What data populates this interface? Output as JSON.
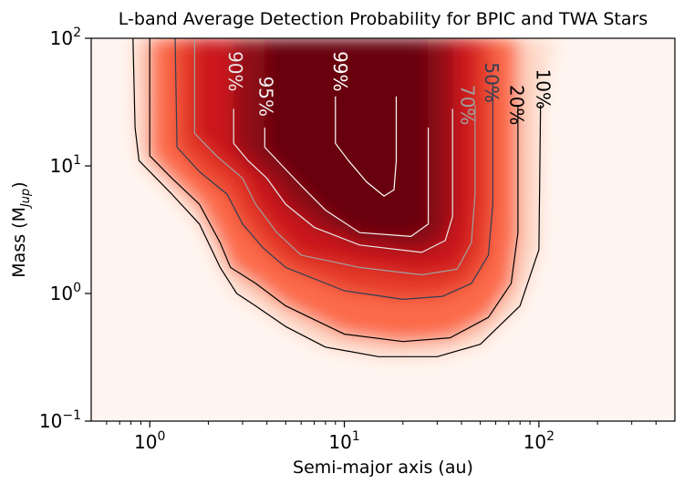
{
  "chart_data": {
    "type": "heatmap",
    "title": "L-band Average Detection Probability for BPIC and TWA Stars",
    "xlabel": "Semi-major axis (au)",
    "ylabel": "Mass (M",
    "ylabel_sub": "Jup",
    "ylabel_close": ")",
    "x_scale": "log",
    "y_scale": "log",
    "xlim": [
      0.5,
      500
    ],
    "ylim": [
      0.1,
      100
    ],
    "x_ticks": [
      {
        "value": 1,
        "base": "10",
        "exp": "0"
      },
      {
        "value": 10,
        "base": "10",
        "exp": "1"
      },
      {
        "value": 100,
        "base": "10",
        "exp": "2"
      }
    ],
    "y_ticks": [
      {
        "value": 0.1,
        "base": "10",
        "exp": "−1"
      },
      {
        "value": 1,
        "base": "10",
        "exp": "0"
      },
      {
        "value": 10,
        "base": "10",
        "exp": "1"
      },
      {
        "value": 100,
        "base": "10",
        "exp": "2"
      }
    ],
    "colormap": [
      "#fff5f0",
      "#fcbba1",
      "#fb6a4a",
      "#cb181d",
      "#67000d"
    ],
    "contours": [
      {
        "label": "10%",
        "level": 0.1,
        "color": "#000000",
        "label_at": [
          105,
          40
        ],
        "points": [
          [
            0.82,
            100
          ],
          [
            0.84,
            20
          ],
          [
            0.88,
            11
          ],
          [
            1.3,
            6
          ],
          [
            1.8,
            3.5
          ],
          [
            2.3,
            1.6
          ],
          [
            2.8,
            1.0
          ],
          [
            3.5,
            0.8
          ],
          [
            5,
            0.55
          ],
          [
            8,
            0.38
          ],
          [
            15,
            0.32
          ],
          [
            30,
            0.32
          ],
          [
            50,
            0.4
          ],
          [
            80,
            0.8
          ],
          [
            100,
            2.2
          ],
          [
            102,
            30
          ]
        ]
      },
      {
        "label": "20%",
        "level": 0.2,
        "color": "#000000",
        "label_at": [
          77,
          30
        ],
        "points": [
          [
            1.0,
            100
          ],
          [
            1.0,
            12
          ],
          [
            1.3,
            8
          ],
          [
            1.8,
            5
          ],
          [
            2.3,
            2.5
          ],
          [
            2.6,
            1.6
          ],
          [
            3.5,
            1.2
          ],
          [
            5,
            0.8
          ],
          [
            10,
            0.48
          ],
          [
            20,
            0.42
          ],
          [
            35,
            0.45
          ],
          [
            55,
            0.65
          ],
          [
            72,
            1.2
          ],
          [
            78,
            3
          ],
          [
            78,
            30
          ]
        ]
      },
      {
        "label": "50%",
        "level": 0.5,
        "color": "#2f3d55",
        "label_at": [
          57,
          45
        ],
        "points": [
          [
            1.35,
            100
          ],
          [
            1.38,
            14
          ],
          [
            1.8,
            9
          ],
          [
            2.5,
            6
          ],
          [
            3,
            3.5
          ],
          [
            3.8,
            2.3
          ],
          [
            5,
            1.6
          ],
          [
            10,
            1.05
          ],
          [
            20,
            0.9
          ],
          [
            32,
            0.95
          ],
          [
            45,
            1.2
          ],
          [
            55,
            2
          ],
          [
            58,
            5
          ],
          [
            58,
            45
          ]
        ]
      },
      {
        "label": "70%",
        "level": 0.7,
        "color": "#a0a0a0",
        "label_at": [
          43,
          30
        ],
        "points": [
          [
            1.7,
            100
          ],
          [
            1.7,
            18
          ],
          [
            2.2,
            12
          ],
          [
            3,
            8
          ],
          [
            3.5,
            5
          ],
          [
            4.5,
            3
          ],
          [
            6,
            2
          ],
          [
            12,
            1.6
          ],
          [
            25,
            1.4
          ],
          [
            38,
            1.55
          ],
          [
            45,
            2.5
          ],
          [
            47,
            6
          ],
          [
            47,
            30
          ]
        ]
      },
      {
        "label": "90%",
        "level": 0.9,
        "color": "#e8e8e8",
        "label_at": [
          2.75,
          55
        ],
        "points": [
          [
            2.7,
            28
          ],
          [
            2.7,
            15
          ],
          [
            3.2,
            11
          ],
          [
            4,
            8
          ],
          [
            5,
            5
          ],
          [
            7,
            3.3
          ],
          [
            12,
            2.4
          ],
          [
            25,
            2.1
          ],
          [
            33,
            2.6
          ],
          [
            36,
            4
          ],
          [
            36,
            28
          ]
        ]
      },
      {
        "label": "95%",
        "level": 0.95,
        "color": "#f2f2f2",
        "label_at": [
          3.95,
          35
        ],
        "points": [
          [
            3.9,
            20
          ],
          [
            3.9,
            14
          ],
          [
            4.8,
            10
          ],
          [
            6,
            7
          ],
          [
            8,
            4.5
          ],
          [
            12,
            3
          ],
          [
            22,
            2.8
          ],
          [
            27,
            3.5
          ],
          [
            27,
            20
          ]
        ]
      },
      {
        "label": "99%",
        "level": 0.99,
        "color": "#ffffff",
        "label_at": [
          9.5,
          55
        ],
        "points": [
          [
            9,
            35
          ],
          [
            9,
            15
          ],
          [
            10.5,
            11
          ],
          [
            13,
            7.5
          ],
          [
            16,
            5.8
          ],
          [
            18,
            6.5
          ],
          [
            18.5,
            11
          ],
          [
            18.5,
            35
          ]
        ]
      }
    ]
  }
}
